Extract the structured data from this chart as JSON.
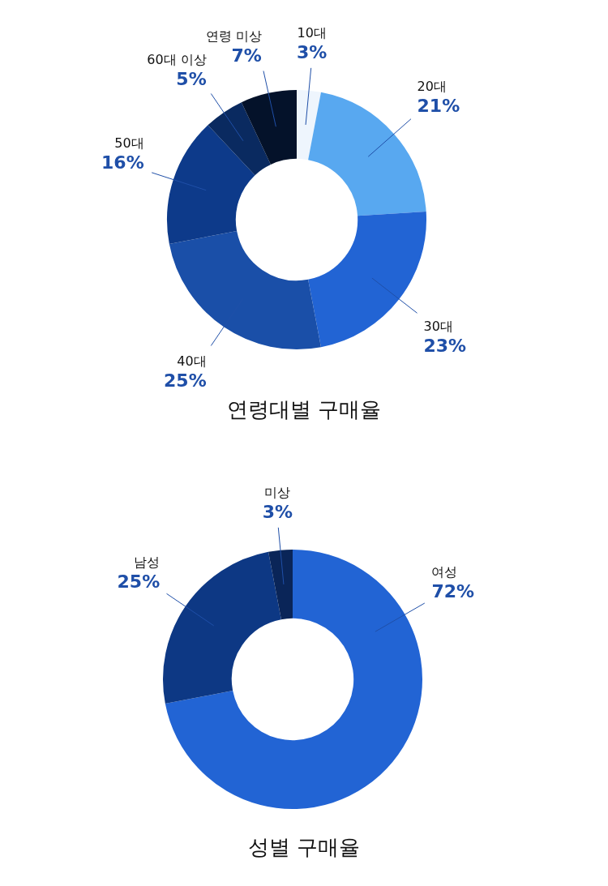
{
  "chart_data": [
    {
      "type": "donut",
      "title": "연령대별 구매율",
      "categories": [
        "10대",
        "20대",
        "30대",
        "40대",
        "50대",
        "60대 이상",
        "연령 미상"
      ],
      "values": [
        3,
        21,
        23,
        25,
        16,
        5,
        7
      ],
      "value_labels": [
        "3%",
        "21%",
        "23%",
        "25%",
        "16%",
        "5%",
        "7%"
      ],
      "colors": [
        "#eef5fd",
        "#58a8f0",
        "#2264d4",
        "#1a4fa8",
        "#0d3a8a",
        "#0a2a60",
        "#04122a"
      ]
    },
    {
      "type": "donut",
      "title": "성별 구매율",
      "categories": [
        "여성",
        "남성",
        "미상"
      ],
      "values": [
        72,
        25,
        3
      ],
      "value_labels": [
        "72%",
        "25%",
        "3%"
      ],
      "colors": [
        "#2264d4",
        "#0d3884",
        "#0a2558"
      ]
    }
  ]
}
